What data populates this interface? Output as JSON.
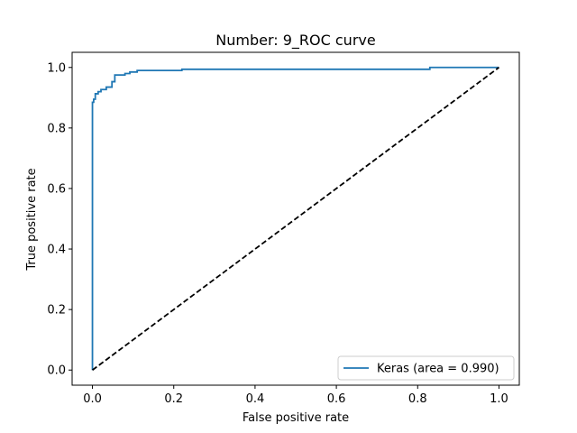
{
  "chart_data": {
    "type": "line",
    "title": "Number:  9_ROC curve",
    "xlabel": "False positive rate",
    "ylabel": "True positive rate",
    "xlim": [
      -0.05,
      1.05
    ],
    "ylim": [
      -0.05,
      1.05
    ],
    "xticks": [
      0.0,
      0.2,
      0.4,
      0.6,
      0.8,
      1.0
    ],
    "yticks": [
      0.0,
      0.2,
      0.4,
      0.6,
      0.8,
      1.0
    ],
    "xtick_labels": [
      "0.0",
      "0.2",
      "0.4",
      "0.6",
      "0.8",
      "1.0"
    ],
    "ytick_labels": [
      "0.0",
      "0.2",
      "0.4",
      "0.6",
      "0.8",
      "1.0"
    ],
    "grid": false,
    "legend_position": "lower-right",
    "series": [
      {
        "name": "Keras (area = 0.990)",
        "color": "#1f77b4",
        "style": "solid",
        "x": [
          0.0,
          0.0,
          0.003,
          0.003,
          0.007,
          0.007,
          0.014,
          0.014,
          0.021,
          0.021,
          0.034,
          0.034,
          0.048,
          0.048,
          0.055,
          0.055,
          0.08,
          0.08,
          0.092,
          0.092,
          0.11,
          0.11,
          0.22,
          0.22,
          0.83,
          0.83,
          1.0
        ],
        "y": [
          0.0,
          0.885,
          0.885,
          0.895,
          0.895,
          0.913,
          0.913,
          0.92,
          0.92,
          0.927,
          0.927,
          0.935,
          0.935,
          0.953,
          0.953,
          0.975,
          0.975,
          0.98,
          0.98,
          0.985,
          0.985,
          0.99,
          0.99,
          0.994,
          0.994,
          1.0,
          1.0
        ]
      },
      {
        "name": "",
        "color": "#000000",
        "style": "dashed",
        "x": [
          0.0,
          1.0
        ],
        "y": [
          0.0,
          1.0
        ]
      }
    ]
  }
}
